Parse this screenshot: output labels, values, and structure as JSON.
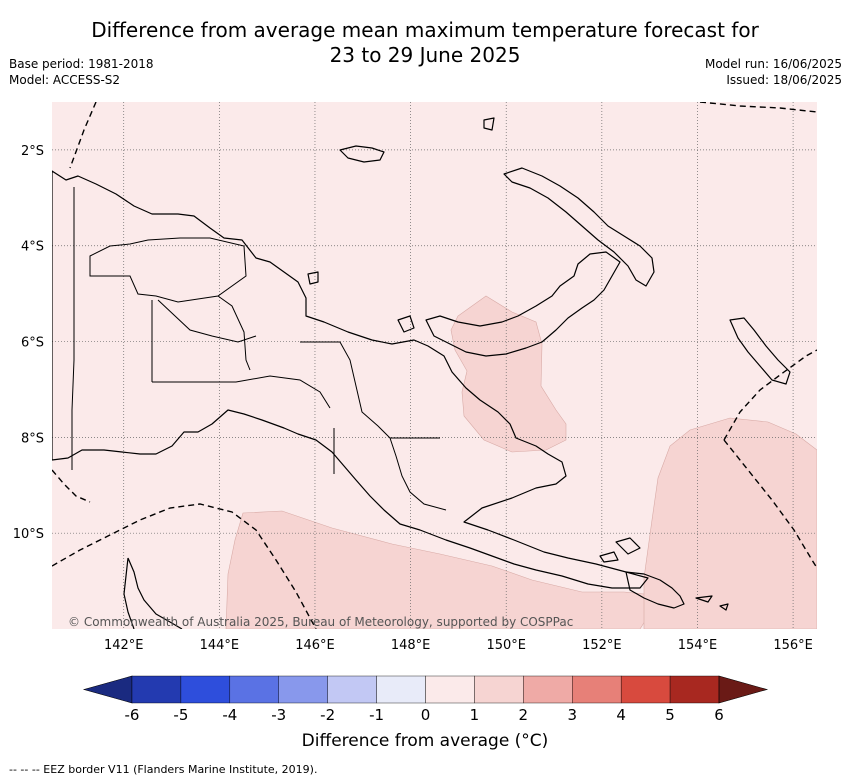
{
  "header": {
    "title_line1": "Difference from average mean maximum temperature forecast for",
    "title_line2": "23 to 29 June 2025",
    "base_period": "Base period: 1981-2018",
    "model": "Model: ACCESS-S2",
    "model_run": "Model run: 16/06/2025",
    "issued": "Issued: 18/06/2025"
  },
  "map": {
    "region": "Papua New Guinea",
    "lon_range": [
      140.5,
      156.5
    ],
    "lat_range": [
      -12.0,
      -1.0
    ],
    "lon_ticks": [
      "142°E",
      "144°E",
      "146°E",
      "148°E",
      "150°E",
      "152°E",
      "154°E",
      "156°E"
    ],
    "lat_ticks": [
      "2°S",
      "4°S",
      "6°S",
      "8°S",
      "10°S"
    ],
    "background_anomaly_class": "0 to 1",
    "copyright": "© Commonwealth of Australia 2025, Bureau of Meteorology, supported by COSPPac",
    "anomaly_areas": [
      {
        "name": "New Britain southern waters",
        "class": "1 to 2"
      },
      {
        "name": "Coral Sea south of PNG",
        "class": "1 to 2"
      },
      {
        "name": "Solomon Sea east",
        "class": "1 to 2"
      }
    ]
  },
  "colorbar": {
    "title": "Difference from average (°C)",
    "tick_labels": [
      "-6",
      "-5",
      "-4",
      "-3",
      "-2",
      "-1",
      "0",
      "1",
      "2",
      "3",
      "4",
      "5",
      "6"
    ],
    "colors": [
      "#1a2a80",
      "#233ab0",
      "#2e4edc",
      "#5a72e4",
      "#8898ec",
      "#c2c8f4",
      "#e8ebf9",
      "#fbeaea",
      "#f6d4d2",
      "#efaaa6",
      "#e78078",
      "#d84a3e",
      "#a82820",
      "#6a1a16"
    ]
  },
  "footer": {
    "eez_note": "--  --  -- EEZ border V11 (Flanders Marine Institute, 2019)."
  }
}
